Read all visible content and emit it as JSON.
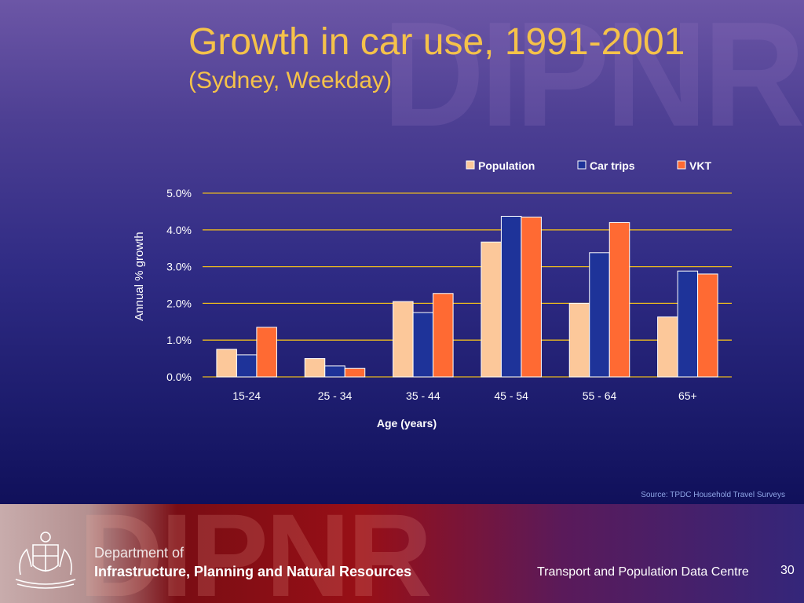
{
  "slide": {
    "title": "Growth in car use, 1991-2001",
    "subtitle": "(Sydney, Weekday)",
    "watermark": "DIPNR",
    "source": "Source: TPDC Household Travel Surveys"
  },
  "footer": {
    "dept_line1": "Department of",
    "dept_line2": "Infrastructure, Planning and Natural Resources",
    "centre": "Transport and Population Data Centre",
    "page_number": "30"
  },
  "colors": {
    "title": "#f5c24a",
    "gridline": "#e8b820",
    "population": "#fcc89a",
    "car_trips": "#1e3399",
    "vkt": "#ff6a33"
  },
  "chart_data": {
    "type": "bar",
    "categories": [
      "15-24",
      "25 - 34",
      "35 - 44",
      "45 - 54",
      "55 - 64",
      "65+"
    ],
    "series": [
      {
        "name": "Population",
        "values": [
          0.75,
          0.5,
          2.05,
          3.67,
          2.0,
          1.63
        ],
        "color": "#fcc89a"
      },
      {
        "name": "Car trips",
        "values": [
          0.6,
          0.3,
          1.75,
          4.37,
          3.38,
          2.88
        ],
        "color": "#1e3399"
      },
      {
        "name": "VKT",
        "values": [
          1.35,
          0.23,
          2.27,
          4.35,
          4.2,
          2.8
        ],
        "color": "#ff6a33"
      }
    ],
    "xlabel": "Age (years)",
    "ylabel": "Annual % growth",
    "ylim": [
      0,
      5
    ],
    "yticks": [
      "0.0%",
      "1.0%",
      "2.0%",
      "3.0%",
      "4.0%",
      "5.0%"
    ],
    "legend_position": "top-right",
    "grid": true
  }
}
